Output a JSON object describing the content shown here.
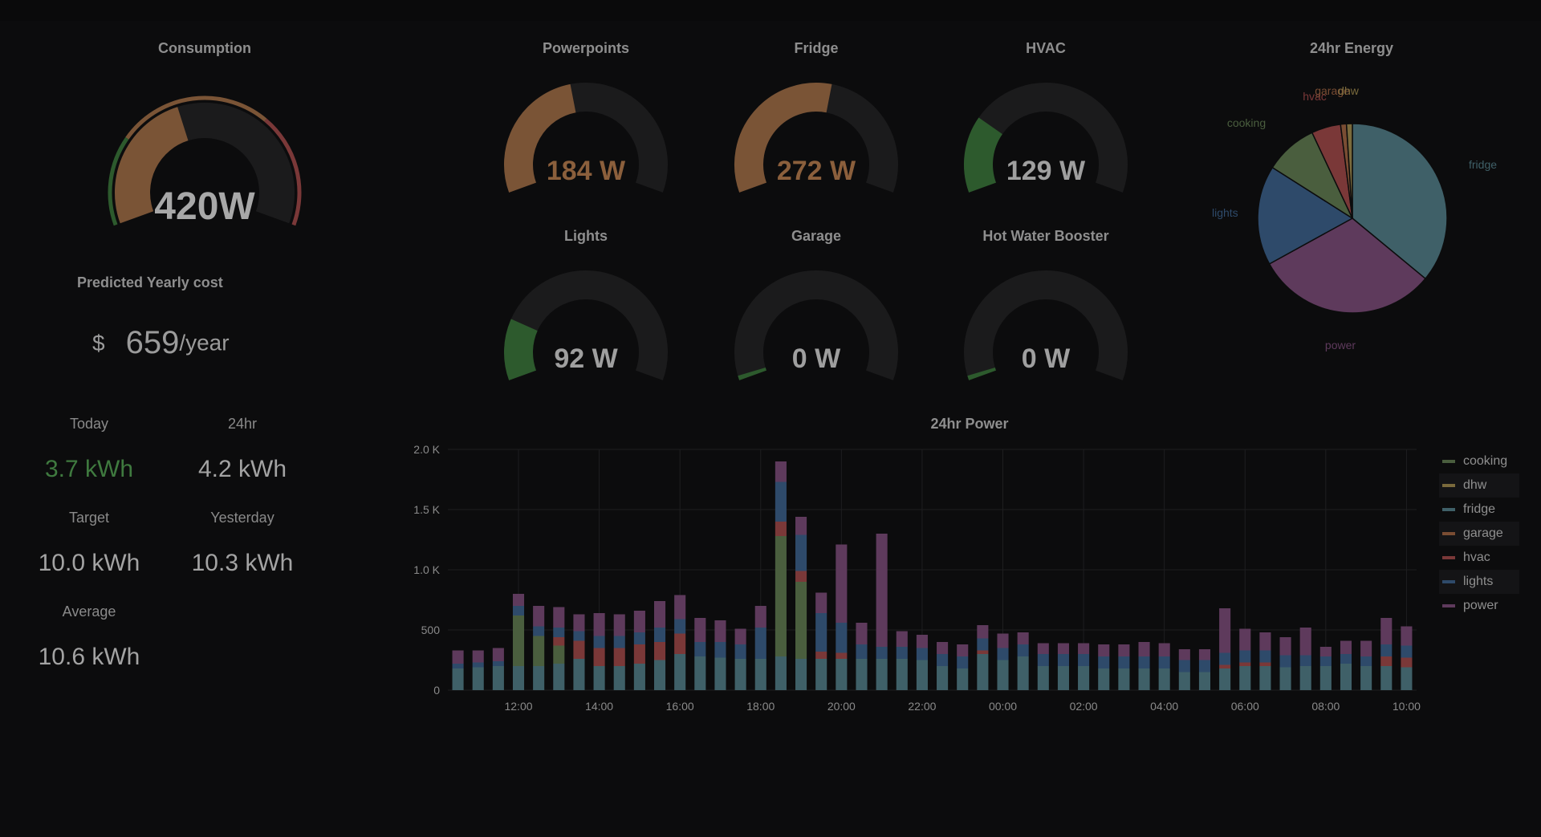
{
  "consumption": {
    "title": "Consumption",
    "value": "420W",
    "fraction": 0.42
  },
  "cost": {
    "title": "Predicted Yearly cost",
    "currency": "$",
    "value": "659",
    "unit": "/year"
  },
  "stats": [
    {
      "label": "Today",
      "value": "3.7 kWh",
      "color": "#3f7a3f"
    },
    {
      "label": "24hr",
      "value": "4.2 kWh",
      "color": "#a3a3a3"
    },
    {
      "label": "Target",
      "value": "10.0 kWh",
      "color": "#a3a3a3"
    },
    {
      "label": "Yesterday",
      "value": "10.3 kWh",
      "color": "#a3a3a3"
    },
    {
      "label": "Average",
      "value": "10.6 kWh",
      "color": "#a3a3a3"
    }
  ],
  "gauges": [
    {
      "title": "Powerpoints",
      "value": "184 W",
      "fraction": 0.45,
      "color": "#7a5436"
    },
    {
      "title": "Fridge",
      "value": "272 W",
      "fraction": 0.55,
      "color": "#7a5436"
    },
    {
      "title": "HVAC",
      "value": "129 W",
      "fraction": 0.25,
      "color": "#2d5a2d"
    },
    {
      "title": "Lights",
      "value": "92 W",
      "fraction": 0.2,
      "color": "#2d5a2d"
    },
    {
      "title": "Garage",
      "value": "0 W",
      "fraction": 0.015,
      "color": "#2d5a2d"
    },
    {
      "title": "Hot Water Booster",
      "value": "0 W",
      "fraction": 0.015,
      "color": "#2d5a2d"
    }
  ],
  "colors": {
    "cooking": "#4a5e3e",
    "dhw": "#7a6a3c",
    "fridge": "#3f6068",
    "garage": "#7a4d33",
    "hvac": "#7a3838",
    "lights": "#2e4a6a",
    "power": "#5e3a5c",
    "value_text": "#9f9f9f",
    "value_warm": "#8b5f3c"
  },
  "pie": {
    "title": "24hr Energy",
    "slices": [
      {
        "label": "fridge",
        "value": 36,
        "color": "#3f6068"
      },
      {
        "label": "power",
        "value": 31,
        "color": "#5e3a5c"
      },
      {
        "label": "lights",
        "value": 17,
        "color": "#2e4a6a"
      },
      {
        "label": "cooking",
        "value": 9,
        "color": "#4a5e3e"
      },
      {
        "label": "hvac",
        "value": 5,
        "color": "#7a3838"
      },
      {
        "label": "garage",
        "value": 1,
        "color": "#7a4d33"
      },
      {
        "label": "dhw",
        "value": 1,
        "color": "#7a6a3c"
      }
    ]
  },
  "chart_data": {
    "type": "bar",
    "title": "24hr Power",
    "ylim": [
      0,
      2000
    ],
    "yticks": [
      "0",
      "500",
      "1.0 K",
      "1.5 K",
      "2.0 K"
    ],
    "ytick_values": [
      0,
      500,
      1000,
      1500,
      2000
    ],
    "xticks": [
      "12:00",
      "14:00",
      "16:00",
      "18:00",
      "20:00",
      "22:00",
      "00:00",
      "02:00",
      "04:00",
      "06:00",
      "08:00",
      "10:00"
    ],
    "series_order": [
      "fridge",
      "cooking",
      "dhw",
      "garage",
      "hvac",
      "lights",
      "power"
    ],
    "legend": [
      "cooking",
      "dhw",
      "fridge",
      "garage",
      "hvac",
      "lights",
      "power"
    ],
    "legend_position": "right",
    "bars": [
      {
        "fridge": 180,
        "lights": 40,
        "power": 110
      },
      {
        "fridge": 190,
        "lights": 40,
        "power": 100
      },
      {
        "fridge": 200,
        "lights": 40,
        "power": 110
      },
      {
        "fridge": 200,
        "cooking": 420,
        "lights": 80,
        "power": 100
      },
      {
        "fridge": 200,
        "cooking": 250,
        "lights": 80,
        "power": 170
      },
      {
        "fridge": 220,
        "cooking": 150,
        "hvac": 70,
        "lights": 80,
        "power": 170
      },
      {
        "fridge": 260,
        "hvac": 150,
        "lights": 80,
        "power": 140
      },
      {
        "fridge": 200,
        "hvac": 150,
        "lights": 100,
        "power": 190
      },
      {
        "fridge": 200,
        "hvac": 150,
        "lights": 100,
        "power": 180
      },
      {
        "fridge": 220,
        "hvac": 160,
        "lights": 100,
        "power": 180
      },
      {
        "fridge": 250,
        "hvac": 150,
        "lights": 120,
        "power": 220
      },
      {
        "fridge": 300,
        "hvac": 170,
        "lights": 120,
        "power": 200
      },
      {
        "fridge": 280,
        "lights": 120,
        "power": 200
      },
      {
        "fridge": 270,
        "lights": 130,
        "power": 180
      },
      {
        "fridge": 260,
        "lights": 120,
        "power": 130
      },
      {
        "fridge": 260,
        "lights": 260,
        "power": 180
      },
      {
        "fridge": 280,
        "cooking": 1000,
        "hvac": 120,
        "lights": 330,
        "power": 170
      },
      {
        "fridge": 260,
        "cooking": 640,
        "hvac": 90,
        "lights": 300,
        "power": 150
      },
      {
        "fridge": 260,
        "hvac": 60,
        "lights": 320,
        "power": 170
      },
      {
        "fridge": 260,
        "hvac": 50,
        "lights": 250,
        "power": 650
      },
      {
        "fridge": 260,
        "lights": 120,
        "power": 180
      },
      {
        "fridge": 260,
        "lights": 100,
        "power": 940
      },
      {
        "fridge": 260,
        "lights": 100,
        "power": 130
      },
      {
        "fridge": 250,
        "lights": 100,
        "power": 110
      },
      {
        "fridge": 200,
        "lights": 100,
        "power": 100
      },
      {
        "fridge": 180,
        "lights": 100,
        "power": 100
      },
      {
        "fridge": 300,
        "hvac": 30,
        "lights": 100,
        "power": 110
      },
      {
        "fridge": 250,
        "lights": 100,
        "power": 120
      },
      {
        "fridge": 280,
        "lights": 100,
        "power": 100
      },
      {
        "fridge": 200,
        "lights": 100,
        "power": 90
      },
      {
        "fridge": 200,
        "lights": 100,
        "power": 90
      },
      {
        "fridge": 200,
        "lights": 100,
        "power": 90
      },
      {
        "fridge": 180,
        "lights": 100,
        "power": 100
      },
      {
        "fridge": 180,
        "lights": 100,
        "power": 100
      },
      {
        "fridge": 180,
        "lights": 100,
        "power": 120
      },
      {
        "fridge": 180,
        "lights": 100,
        "power": 110
      },
      {
        "fridge": 150,
        "lights": 100,
        "power": 90
      },
      {
        "fridge": 150,
        "lights": 100,
        "power": 90
      },
      {
        "fridge": 180,
        "hvac": 30,
        "lights": 100,
        "power": 370
      },
      {
        "fridge": 200,
        "hvac": 30,
        "lights": 100,
        "power": 180
      },
      {
        "fridge": 200,
        "hvac": 30,
        "lights": 100,
        "power": 150
      },
      {
        "fridge": 190,
        "lights": 100,
        "power": 150
      },
      {
        "fridge": 200,
        "lights": 90,
        "power": 230
      },
      {
        "fridge": 200,
        "lights": 80,
        "power": 80
      },
      {
        "fridge": 220,
        "lights": 80,
        "power": 110
      },
      {
        "fridge": 200,
        "lights": 80,
        "power": 130
      },
      {
        "fridge": 200,
        "hvac": 80,
        "lights": 100,
        "power": 220
      },
      {
        "fridge": 190,
        "hvac": 80,
        "lights": 100,
        "power": 160
      }
    ]
  }
}
